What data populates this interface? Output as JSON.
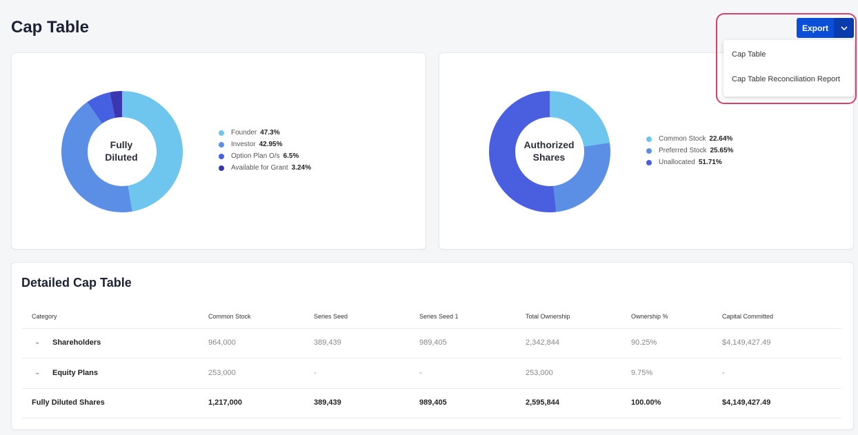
{
  "page_title": "Cap Table",
  "export": {
    "label": "Export",
    "menu": [
      "Cap Table",
      "Cap Table Reconciliation Report"
    ]
  },
  "charts": [
    {
      "center": [
        "Fully",
        "Diluted"
      ],
      "segments": [
        {
          "label": "Founder",
          "value": "47.3%",
          "pct": 47.3,
          "color": "#6ec6ee"
        },
        {
          "label": "Investor",
          "value": "42.95%",
          "pct": 42.95,
          "color": "#5b8fe6"
        },
        {
          "label": "Option Plan O/s",
          "value": "6.5%",
          "pct": 6.5,
          "color": "#4560e0"
        },
        {
          "label": "Available for Grant",
          "value": "3.24%",
          "pct": 3.24,
          "color": "#3a36b0"
        }
      ]
    },
    {
      "center": [
        "Authorized",
        "Shares"
      ],
      "segments": [
        {
          "label": "Common Stock",
          "value": "22.64%",
          "pct": 22.64,
          "color": "#6ec6ee"
        },
        {
          "label": "Preferred Stock",
          "value": "25.65%",
          "pct": 25.65,
          "color": "#5b8fe6"
        },
        {
          "label": "Unallocated",
          "value": "51.71%",
          "pct": 51.71,
          "color": "#4a5fe0"
        }
      ]
    }
  ],
  "table": {
    "title": "Detailed Cap Table",
    "headers": [
      "Category",
      "Common Stock",
      "Series Seed",
      "Series Seed 1",
      "Total Ownership",
      "Ownership %",
      "Capital Committed"
    ],
    "rows": [
      [
        "Shareholders",
        "964,000",
        "389,439",
        "989,405",
        "2,342,844",
        "90.25%",
        "$4,149,427.49"
      ],
      [
        "Equity Plans",
        "253,000",
        "-",
        "-",
        "253,000",
        "9.75%",
        "-"
      ],
      [
        "Fully Diluted Shares",
        "1,217,000",
        "389,439",
        "989,405",
        "2,595,844",
        "100.00%",
        "$4,149,427.49"
      ]
    ]
  }
}
